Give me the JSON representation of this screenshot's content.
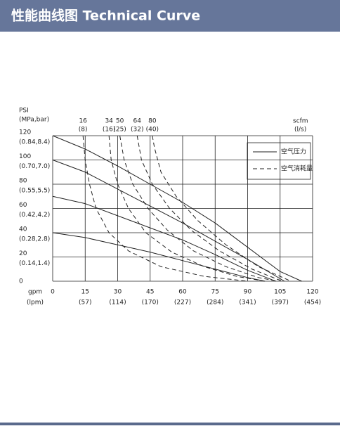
{
  "header": {
    "title": "性能曲线图 Technical Curve"
  },
  "chart_data": {
    "type": "line",
    "y_label": "PSI",
    "y_label_unit": "(MPa,bar)",
    "x_label": "gpm",
    "x_label_unit": "(lpm)",
    "top_label": "scfm",
    "top_label_unit": "(l/s)",
    "xlim": [
      0,
      120
    ],
    "ylim": [
      0,
      120
    ],
    "xticks": [
      0,
      15,
      30,
      45,
      60,
      75,
      90,
      105,
      120
    ],
    "xticks_lpm": [
      null,
      "(57)",
      "(114)",
      "(170)",
      "(227)",
      "(284)",
      "(341)",
      "(397)",
      "(454)"
    ],
    "yticks": [
      0,
      20,
      40,
      60,
      80,
      100,
      120
    ],
    "yticks_metric": [
      null,
      "(0.14,1.4)",
      "(0.28,2.8)",
      "(0.42,4.2)",
      "(0.55,5.5)",
      "(0.70,7.0)",
      "(0.84,8.4)"
    ],
    "grid": true,
    "color": "#222222",
    "legend": [
      {
        "label": "空气压力",
        "style": "solid"
      },
      {
        "label": "空气消耗量",
        "style": "dashed"
      }
    ],
    "dashed_labels": [
      {
        "scfm": "16",
        "ls": "(8)"
      },
      {
        "scfm": "34",
        "ls": "(16)"
      },
      {
        "scfm": "50",
        "ls": "(25)"
      },
      {
        "scfm": "64",
        "ls": "(32)"
      },
      {
        "scfm": "80",
        "ls": "(40)"
      }
    ],
    "series": [
      {
        "style": "solid",
        "x": [
          0,
          15,
          30,
          45,
          60,
          75,
          90,
          105,
          115
        ],
        "values": [
          120,
          109,
          95,
          80,
          65,
          48,
          28,
          8,
          0
        ]
      },
      {
        "style": "solid",
        "x": [
          0,
          15,
          30,
          45,
          60,
          75,
          90,
          107
        ],
        "values": [
          100,
          90,
          76,
          62,
          48,
          33,
          18,
          0
        ]
      },
      {
        "style": "solid",
        "x": [
          0,
          15,
          30,
          45,
          60,
          75,
          90,
          103
        ],
        "values": [
          70,
          64,
          54,
          44,
          34,
          22,
          9,
          0
        ]
      },
      {
        "style": "solid",
        "x": [
          0,
          15,
          30,
          45,
          60,
          75,
          90,
          98
        ],
        "values": [
          40,
          36,
          30,
          24,
          17,
          10,
          3,
          0
        ]
      },
      {
        "style": "dashed",
        "x": [
          14,
          15,
          17,
          20,
          26,
          35,
          50,
          70,
          90
        ],
        "values": [
          120,
          100,
          80,
          60,
          40,
          25,
          12,
          4,
          0
        ]
      },
      {
        "style": "dashed",
        "x": [
          26,
          27,
          30,
          35,
          43,
          55,
          70,
          85,
          98
        ],
        "values": [
          120,
          100,
          80,
          60,
          40,
          24,
          12,
          4,
          0
        ]
      },
      {
        "style": "dashed",
        "x": [
          31,
          33,
          37,
          44,
          53,
          65,
          80,
          95,
          104
        ],
        "values": [
          120,
          100,
          80,
          60,
          42,
          25,
          12,
          3,
          0
        ]
      },
      {
        "style": "dashed",
        "x": [
          39,
          41,
          46,
          54,
          64,
          77,
          92,
          106
        ],
        "values": [
          120,
          100,
          80,
          60,
          42,
          25,
          10,
          0
        ]
      },
      {
        "style": "dashed",
        "x": [
          46,
          47,
          50,
          57,
          67,
          80,
          95,
          110
        ],
        "values": [
          120,
          110,
          90,
          70,
          50,
          30,
          12,
          0
        ]
      }
    ]
  }
}
